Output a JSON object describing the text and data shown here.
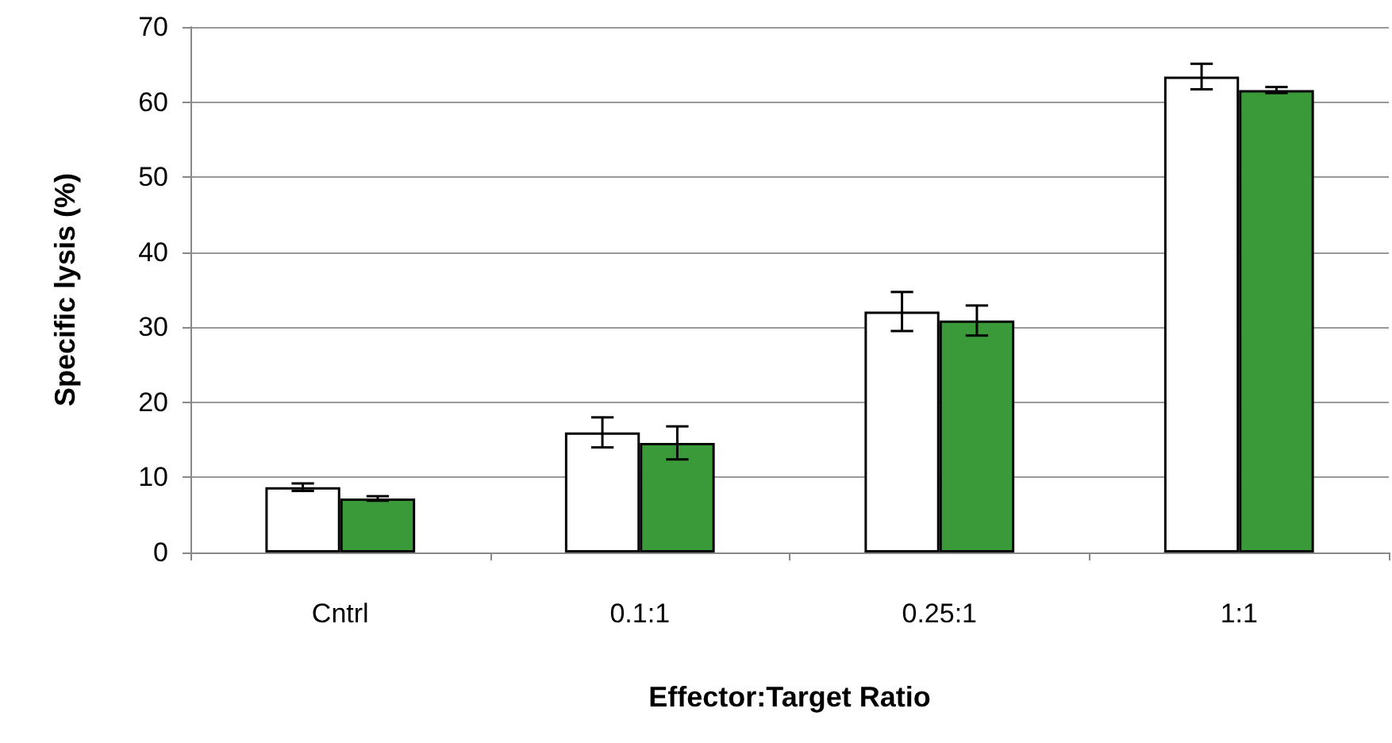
{
  "chart_data": {
    "type": "bar",
    "xlabel": "Effector:Target Ratio",
    "ylabel": "Specific lysis (%)",
    "categories": [
      "Cntrl",
      "0.1:1",
      "0.25:1",
      "1:1"
    ],
    "series": [
      {
        "color": "#ffffff",
        "values": [
          8.7,
          16.0,
          32.1,
          63.4
        ],
        "errors": [
          0.5,
          2.0,
          2.6,
          1.7
        ]
      },
      {
        "color": "#3a9a3a",
        "values": [
          7.2,
          14.6,
          30.9,
          61.6
        ],
        "errors": [
          0.3,
          2.2,
          2.0,
          0.4
        ]
      }
    ],
    "ylim": [
      0,
      70
    ],
    "yticks": [
      0,
      10,
      20,
      30,
      40,
      50,
      60,
      70
    ],
    "grid": "y"
  }
}
